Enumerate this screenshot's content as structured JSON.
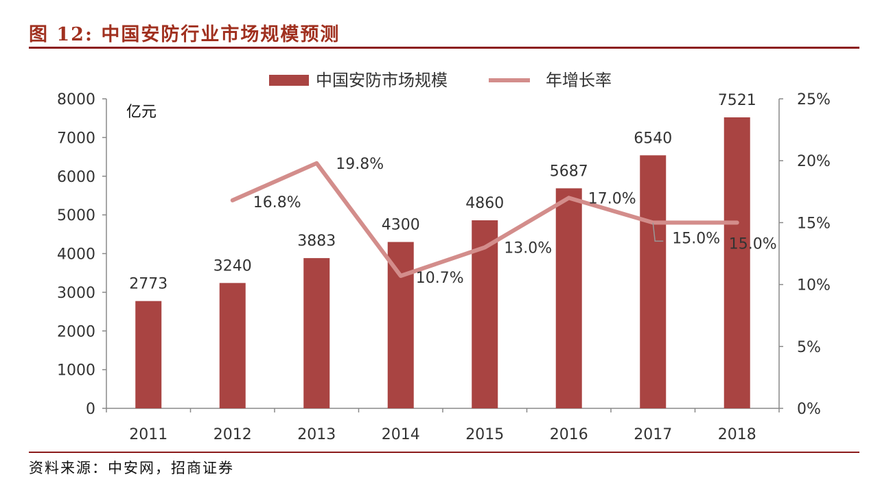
{
  "title": "图 12:  中国安防行业市场规模预测",
  "source": "资料来源：中安网，招商证券",
  "chart_data": {
    "type": "bar+line",
    "categories": [
      "2011",
      "2012",
      "2013",
      "2014",
      "2015",
      "2016",
      "2017",
      "2018"
    ],
    "series": [
      {
        "name": "中国安防市场规模",
        "type": "bar",
        "axis": "left",
        "color": "#a94442",
        "values": [
          2773,
          3240,
          3883,
          4300,
          4860,
          5687,
          6540,
          7521
        ],
        "labels": [
          "2773",
          "3240",
          "3883",
          "4300",
          "4860",
          "5687",
          "6540",
          "7521"
        ]
      },
      {
        "name": "年增长率",
        "type": "line",
        "axis": "right",
        "color": "#d38d8b",
        "values": [
          null,
          16.8,
          19.8,
          10.7,
          13.0,
          17.0,
          15.0,
          15.0
        ],
        "labels": [
          "",
          "16.8%",
          "19.8%",
          "10.7%",
          "13.0%",
          "17.0%",
          "15.0%",
          "15.0%"
        ]
      }
    ],
    "ylabel": "亿元",
    "ylim": [
      0,
      8000
    ],
    "yticks": [
      "0",
      "1000",
      "2000",
      "3000",
      "4000",
      "5000",
      "6000",
      "7000",
      "8000"
    ],
    "y2lim": [
      0,
      25
    ],
    "y2ticks": [
      "0%",
      "5%",
      "10%",
      "15%",
      "20%",
      "25%"
    ],
    "legend": "top-center",
    "grid": false
  }
}
